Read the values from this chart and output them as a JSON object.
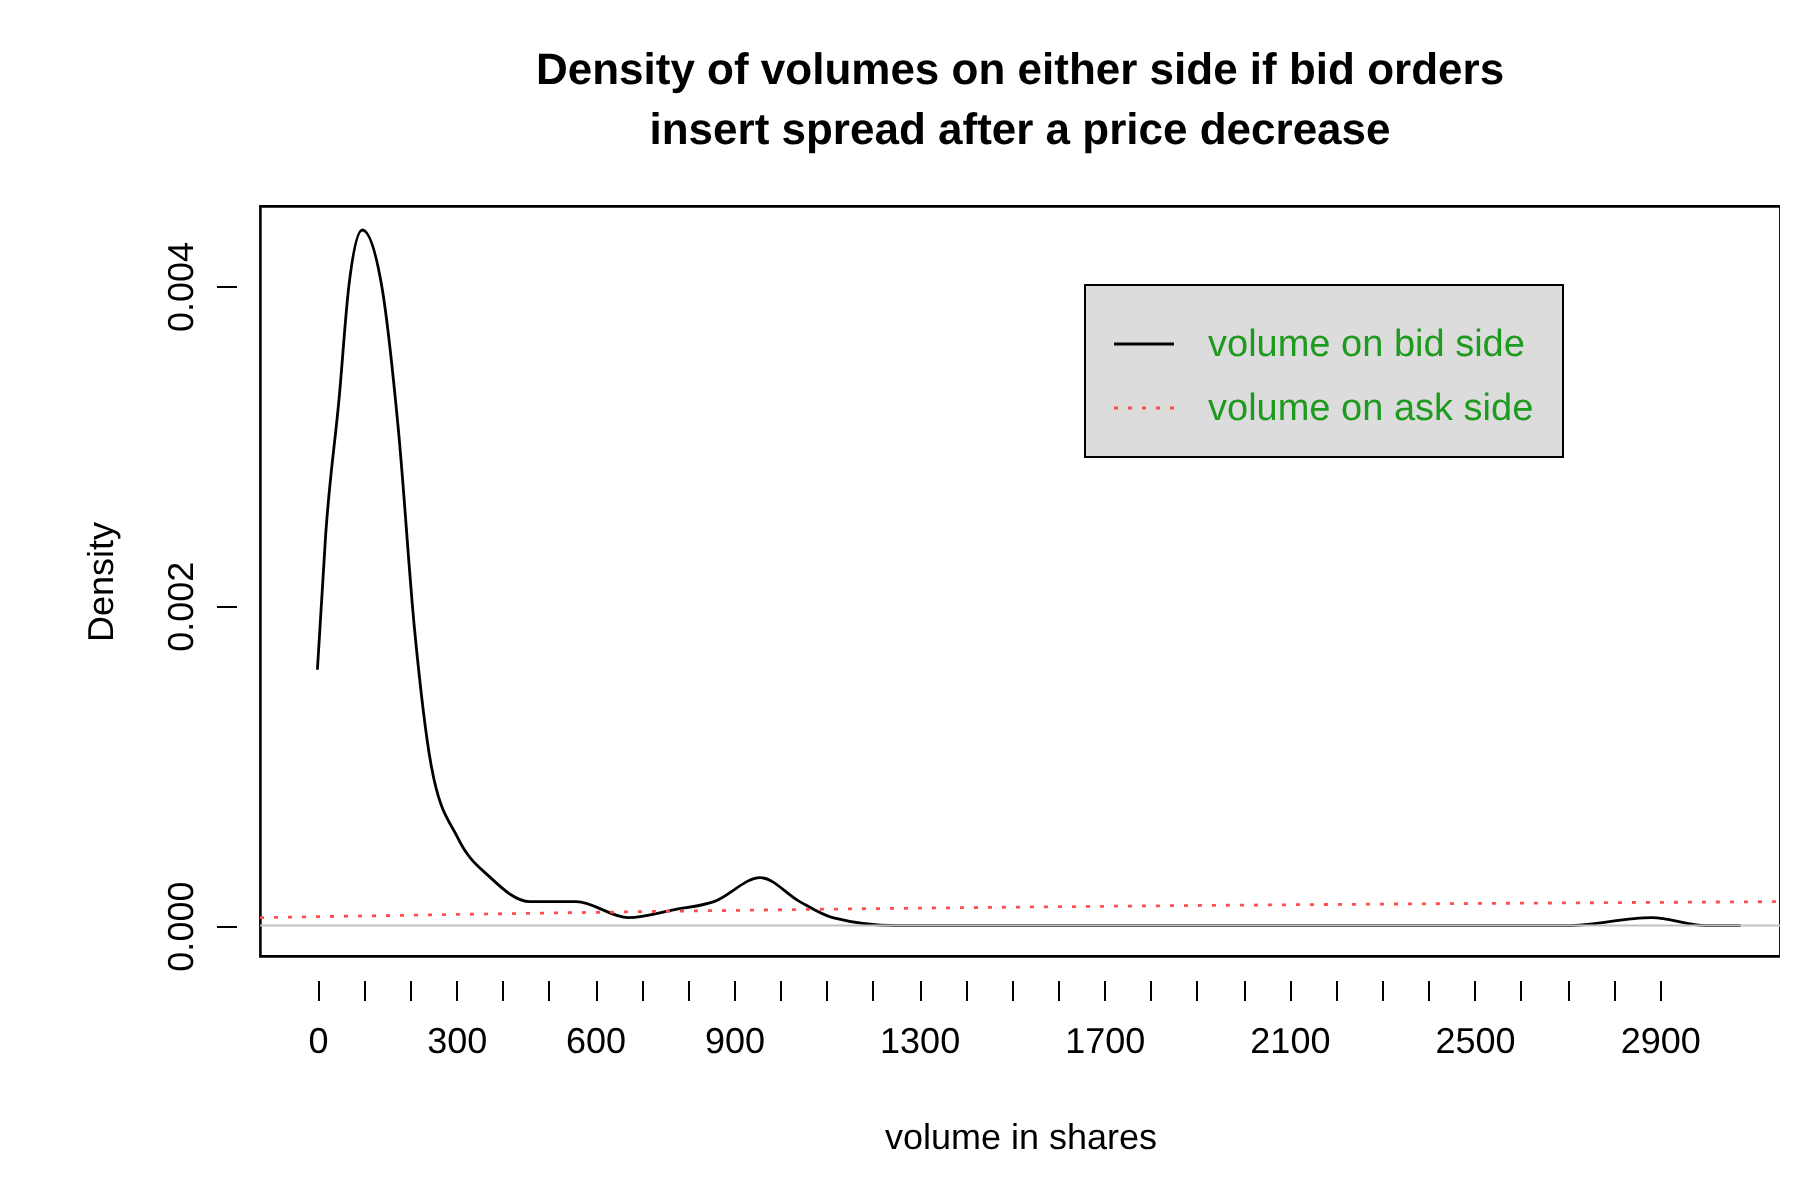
{
  "chart_data": {
    "type": "line",
    "title": "Density of volumes on either side if bid orders\ninsert spread after a price decrease",
    "xlabel": "volume in shares",
    "ylabel": "Density",
    "xlim": [
      -124,
      3160
    ],
    "ylim": [
      -0.00019,
      0.0045
    ],
    "xticks": [
      0,
      {
        "value": 100,
        "label": null
      },
      {
        "value": 200,
        "label": null
      },
      300,
      {
        "value": 400,
        "label": null
      },
      {
        "value": 500,
        "label": null
      },
      600,
      {
        "value": 700,
        "label": null
      },
      {
        "value": 800,
        "label": null
      },
      900,
      {
        "value": 1000,
        "label": null
      },
      {
        "value": 1100,
        "label": null
      },
      {
        "value": 1200,
        "label": null
      },
      1300,
      {
        "value": 1400,
        "label": null
      },
      {
        "value": 1500,
        "label": null
      },
      {
        "value": 1600,
        "label": null
      },
      1700,
      {
        "value": 1800,
        "label": null
      },
      {
        "value": 1900,
        "label": null
      },
      {
        "value": 2000,
        "label": null
      },
      2100,
      {
        "value": 2200,
        "label": null
      },
      {
        "value": 2300,
        "label": null
      },
      {
        "value": 2400,
        "label": null
      },
      2500,
      {
        "value": 2600,
        "label": null
      },
      {
        "value": 2700,
        "label": null
      },
      {
        "value": 2800,
        "label": null
      },
      2900
    ],
    "yticks": [
      {
        "value": 0,
        "label": "0.000"
      },
      {
        "value": 0.002,
        "label": "0.002"
      },
      {
        "value": 0.004,
        "label": "0.004"
      }
    ],
    "legend": "top right",
    "ref_lines": [
      {
        "axis": "y",
        "value": 0,
        "color": "#c0c0c0"
      }
    ],
    "series": [
      {
        "name": "volume on bid side",
        "color": "#000000",
        "line_style": "solid",
        "x": [
          0,
          18,
          47,
          68,
          97,
          139,
          175,
          210,
          246,
          303,
          374,
          459,
          559,
          672,
          772,
          857,
          957,
          1042,
          1113,
          1250,
          1600,
          2000,
          2400,
          2700,
          2883,
          3000,
          3075
        ],
        "values": [
          0.0016,
          0.00245,
          0.0033,
          0.004,
          0.00435,
          0.004,
          0.0031,
          0.00185,
          0.001,
          0.00055,
          0.0003,
          0.00015,
          0.00015,
          5e-05,
          0.0001,
          0.00015,
          0.0003,
          0.00015,
          5e-05,
          0,
          0,
          0,
          0,
          0,
          5e-05,
          0,
          0
        ]
      },
      {
        "name": "volume on ask side",
        "color": "#ff4d4d",
        "line_style": "dotted",
        "x": [
          -124,
          1024,
          3160
        ],
        "values": [
          5e-05,
          0.0001,
          0.00015
        ]
      }
    ]
  }
}
